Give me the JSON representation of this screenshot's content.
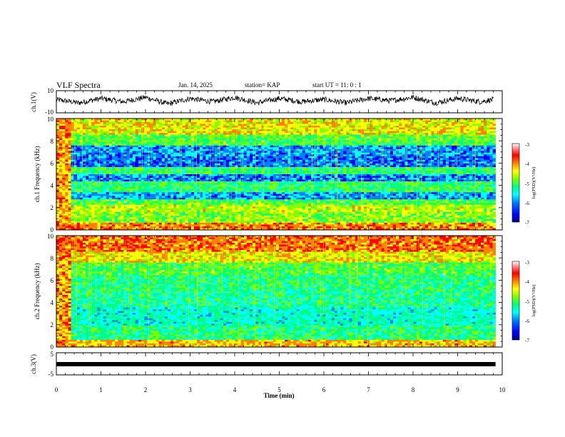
{
  "header": {
    "title": "VLF Spectra",
    "date": "Jan. 14, 2025",
    "station": "station= KAP",
    "start": "start UT =  11: 0  : 1"
  },
  "chart_data": [
    {
      "type": "line",
      "panel": "ch1-waveform",
      "ylabel": "ch.1(V)",
      "ylim": [
        -10,
        10
      ],
      "yticks": [
        "10",
        "-10"
      ],
      "xlim": [
        0,
        10
      ],
      "series": [
        {
          "x": [
            0,
            0.5,
            1,
            1.5,
            2,
            2.5,
            3,
            3.5,
            4,
            4.5,
            5,
            5.5,
            6,
            6.5,
            7,
            7.5,
            8,
            8.5,
            9,
            9.5,
            9.8
          ],
          "values": [
            2,
            -1,
            3,
            0,
            4,
            -2,
            3,
            0,
            4,
            -1,
            3,
            0,
            2,
            -1,
            3,
            1,
            4,
            -1,
            3,
            0,
            2
          ]
        }
      ]
    },
    {
      "type": "heatmap",
      "panel": "ch1-spectrogram",
      "ylabel": "ch.1 Frequency (kHz)",
      "ylim": [
        0,
        10
      ],
      "yticks": [
        "0",
        "2",
        "4",
        "6",
        "8",
        "10"
      ],
      "xlim": [
        0,
        10
      ],
      "data_end_min": 9.85,
      "colorbar": {
        "label": "log(PSD)(V²/Hz)",
        "range": [
          -7,
          -3
        ],
        "ticks": [
          "-3",
          "-4",
          "-5",
          "-6",
          "-7"
        ]
      }
    },
    {
      "type": "heatmap",
      "panel": "ch2-spectrogram",
      "ylabel": "ch.2 Frequency (kHz)",
      "ylim": [
        0,
        10
      ],
      "yticks": [
        "0",
        "2",
        "4",
        "6",
        "8",
        "10"
      ],
      "xlim": [
        0,
        10
      ],
      "data_end_min": 9.85,
      "colorbar": {
        "label": "log(PSD)(V²/Hz)",
        "range": [
          -7,
          -3
        ],
        "ticks": [
          "-3",
          "-4",
          "-5",
          "-6",
          "-7"
        ]
      }
    },
    {
      "type": "line",
      "panel": "ch3-waveform",
      "ylabel": "ch.3(V)",
      "ylim": [
        -5,
        5
      ],
      "yticks": [
        "5",
        "-5"
      ],
      "xlim": [
        0,
        10
      ],
      "xlabel": "Time  (min)",
      "xticks": [
        "0",
        "1",
        "2",
        "3",
        "4",
        "5",
        "6",
        "7",
        "8",
        "9",
        "10"
      ],
      "series": [
        {
          "x": [
            0,
            9.85
          ],
          "values": [
            0,
            0
          ]
        }
      ]
    }
  ],
  "colors": {
    "colormap": [
      "#000080",
      "#0000ff",
      "#0080ff",
      "#00ffff",
      "#00ff80",
      "#80ff00",
      "#ffff00",
      "#ff8000",
      "#ff0000",
      "#ff8080",
      "#ffffff"
    ]
  }
}
